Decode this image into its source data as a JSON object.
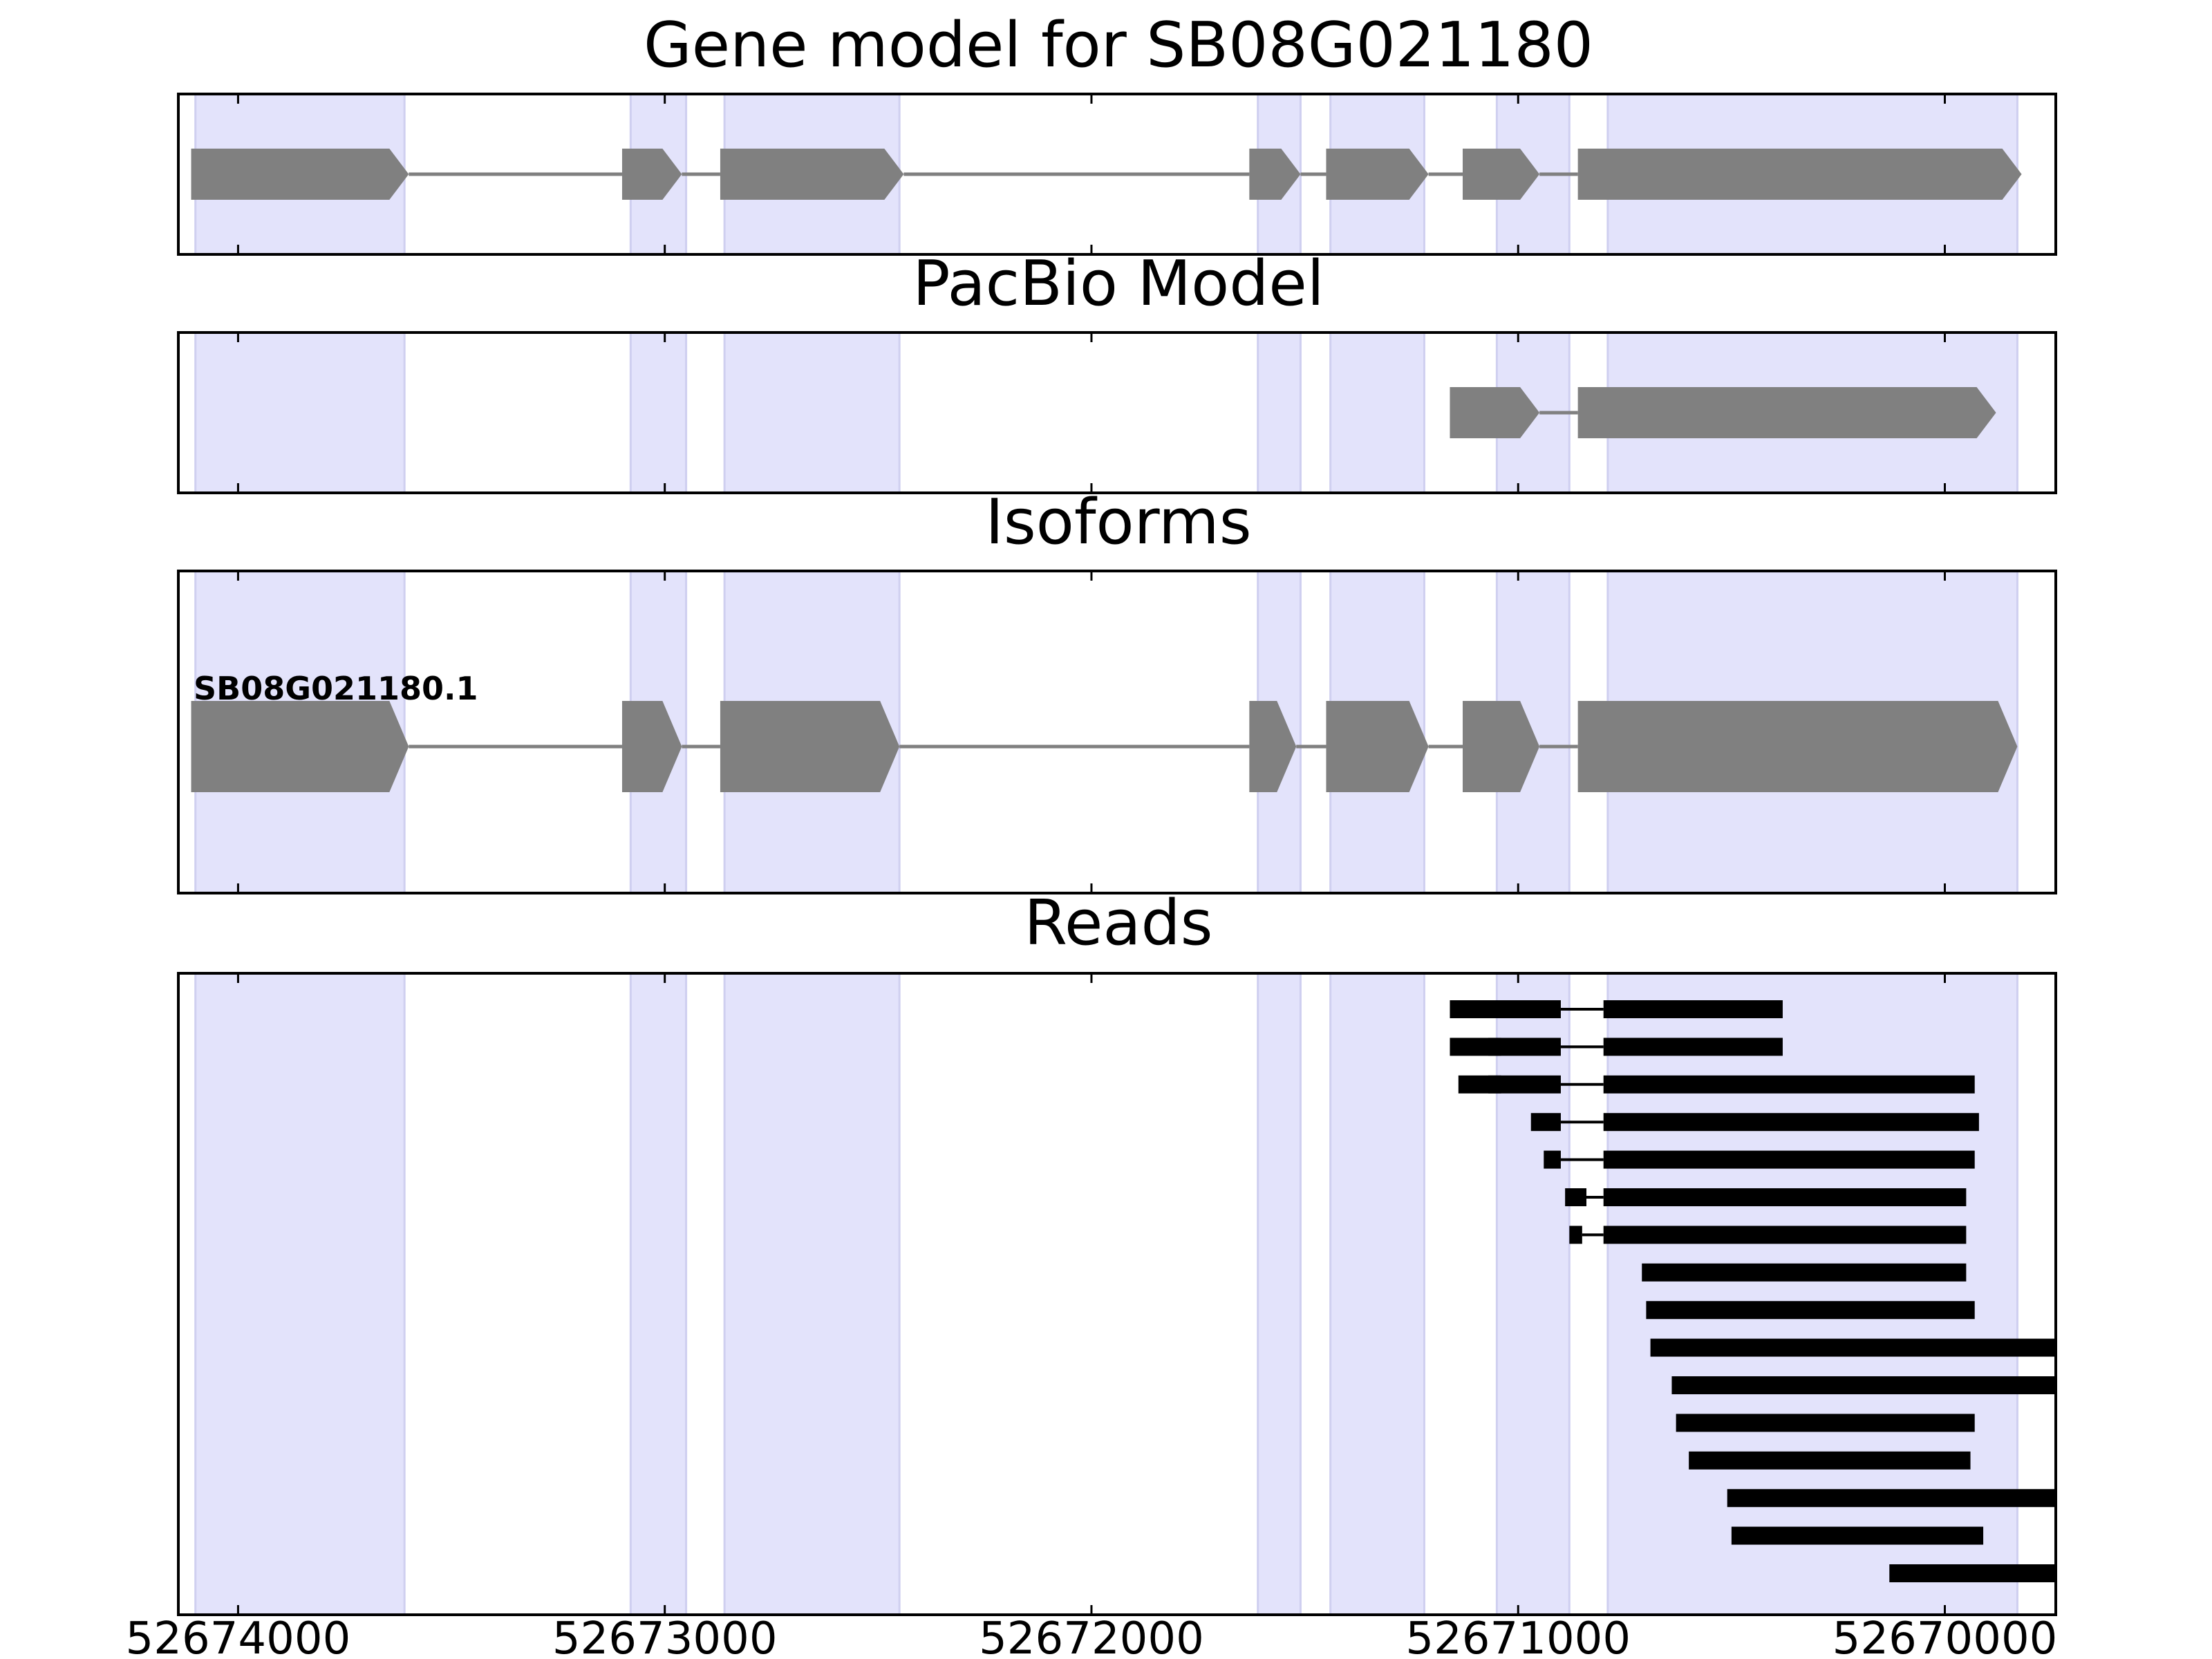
{
  "chart_data": {
    "type": "gene-track",
    "x_axis": {
      "min": 52674140,
      "max": 52669740,
      "reversed": true,
      "ticks": [
        52674000,
        52673000,
        52672000,
        52671000,
        52670000
      ],
      "tick_labels": [
        "52674000",
        "52673000",
        "52672000",
        "52671000",
        "52670000"
      ]
    },
    "exon_regions": [
      [
        52674100,
        52673610
      ],
      [
        52673080,
        52672950
      ],
      [
        52672860,
        52672450
      ],
      [
        52671610,
        52671510
      ],
      [
        52671440,
        52671220
      ],
      [
        52671050,
        52670880
      ],
      [
        52670790,
        52669830
      ]
    ],
    "highlight_color": "#e3e3fb",
    "feature_color": "#808080",
    "read_color": "#000000",
    "panels": [
      {
        "id": "gene-model",
        "title": "Gene model for SB08G021180",
        "label": "",
        "exons": [
          [
            52674110,
            52673600
          ],
          [
            52673100,
            52672960
          ],
          [
            52672870,
            52672440
          ],
          [
            52671630,
            52671510
          ],
          [
            52671450,
            52671210
          ],
          [
            52671130,
            52670950
          ],
          [
            52670860,
            52669820
          ]
        ]
      },
      {
        "id": "pacbio-model",
        "title": "PacBio Model",
        "label": "",
        "exons": [
          [
            52671160,
            52671040
          ],
          [
            52671130,
            52670950
          ],
          [
            52670860,
            52669880
          ]
        ]
      },
      {
        "id": "isoforms",
        "title": "Isoforms",
        "label": "SB08G021180.1",
        "exons": [
          [
            52674110,
            52673600
          ],
          [
            52673100,
            52672960
          ],
          [
            52672870,
            52672450
          ],
          [
            52671630,
            52671520
          ],
          [
            52671450,
            52671210
          ],
          [
            52671130,
            52670950
          ],
          [
            52670860,
            52669830
          ]
        ]
      }
    ],
    "reads_panel": {
      "title": "Reads",
      "reads": [
        [
          [
            52671160,
            52671040
          ],
          [
            52671070,
            52670900
          ],
          [
            52670800,
            52670380
          ]
        ],
        [
          [
            52671160,
            52671040
          ],
          [
            52671070,
            52670900
          ],
          [
            52670800,
            52670380
          ]
        ],
        [
          [
            52671140,
            52671040
          ],
          [
            52671070,
            52670900
          ],
          [
            52670800,
            52669930
          ]
        ],
        [
          [
            52670970,
            52670900
          ],
          [
            52670800,
            52669920
          ]
        ],
        [
          [
            52670940,
            52670900
          ],
          [
            52670800,
            52669930
          ]
        ],
        [
          [
            52670890,
            52670840
          ],
          [
            52670800,
            52669950
          ]
        ],
        [
          [
            52670880,
            52670850
          ],
          [
            52670800,
            52669950
          ]
        ],
        [
          [
            52670710,
            52669950
          ]
        ],
        [
          [
            52670700,
            52669930
          ]
        ],
        [
          [
            52670690,
            52669740
          ]
        ],
        [
          [
            52670640,
            52669740
          ]
        ],
        [
          [
            52670630,
            52669930
          ]
        ],
        [
          [
            52670600,
            52669940
          ]
        ],
        [
          [
            52670510,
            52669740
          ]
        ],
        [
          [
            52670500,
            52669910
          ]
        ],
        [
          [
            52670130,
            52669740
          ]
        ]
      ]
    }
  }
}
